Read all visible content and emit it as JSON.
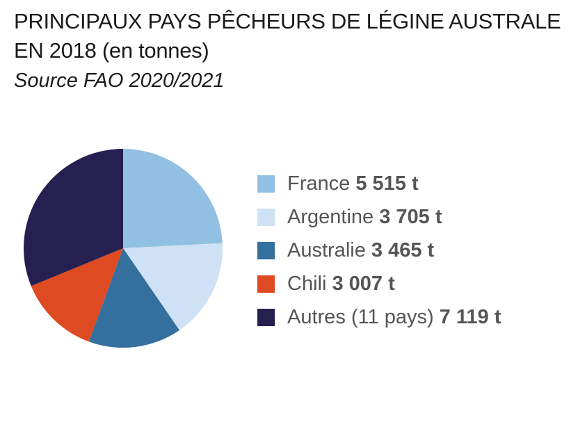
{
  "header": {
    "title_line1": "PRINCIPAUX PAYS PÊCHEURS DE LÉGINE AUSTRALE",
    "title_line2": "EN 2018 (en tonnes)",
    "source": "Source FAO 2020/2021"
  },
  "chart_data": {
    "type": "pie",
    "title": "PRINCIPAUX PAYS PÊCHEURS DE LÉGINE AUSTRALE EN 2018 (en tonnes)",
    "subtitle": "Source FAO 2020/2021",
    "legend_position": "right",
    "slices": [
      {
        "label": "France",
        "value": 5515,
        "value_label": "5 515 t",
        "color": "#92c0e3"
      },
      {
        "label": "Argentine",
        "value": 3705,
        "value_label": "3 705 t",
        "color": "#cfe1f4"
      },
      {
        "label": "Australie",
        "value": 3465,
        "value_label": "3 465 t",
        "color": "#346f9e"
      },
      {
        "label": "Chili",
        "value": 3007,
        "value_label": "3 007 t",
        "color": "#de4a22"
      },
      {
        "label": "Autres (11 pays)",
        "value": 7119,
        "value_label": "7 119 t",
        "color": "#262051"
      }
    ]
  }
}
